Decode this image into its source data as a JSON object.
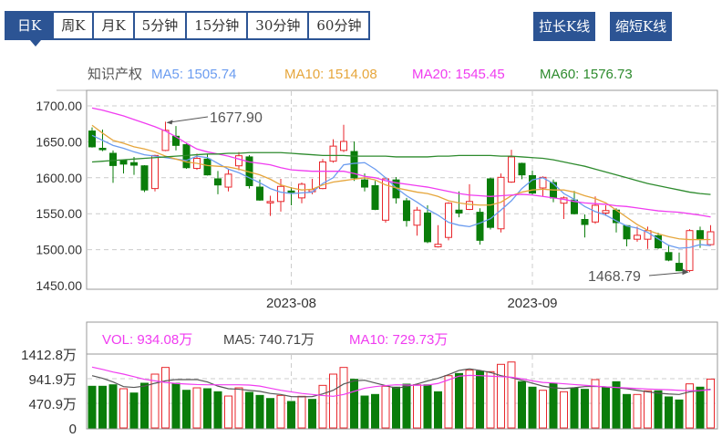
{
  "tabs": [
    {
      "label": "日K",
      "active": true
    },
    {
      "label": "周K"
    },
    {
      "label": "月K"
    },
    {
      "label": "5分钟"
    },
    {
      "label": "15分钟"
    },
    {
      "label": "30分钟"
    },
    {
      "label": "60分钟"
    }
  ],
  "buttons": {
    "zoom_in": "拉长K线",
    "zoom_out": "缩短K线"
  },
  "legend": {
    "name": "知识产权",
    "ma5": "MA5: 1505.74",
    "ma10": "MA10: 1514.08",
    "ma20": "MA20: 1545.45",
    "ma60": "MA60: 1576.73"
  },
  "volume_legend": {
    "vol": "VOL: 934.08万",
    "ma5": "MA5: 740.71万",
    "ma10": "MA10: 729.73万"
  },
  "colors": {
    "accent": "#2c5494",
    "up": "#e8262b",
    "down": "#0a7d0a",
    "ma5": "#6b9cf0",
    "ma10": "#e6a63c",
    "ma20": "#f03cf0",
    "ma60": "#2e8b2e",
    "vol_ma5": "#555555",
    "vol_ma10": "#f03cf0"
  },
  "chart_data": [
    {
      "type": "candlestick",
      "ylim": [
        1450,
        1700
      ],
      "yticks": [
        "1700.00",
        "1650.00",
        "1600.00",
        "1550.00",
        "1500.00",
        "1450.00"
      ],
      "xticks": [
        {
          "label": "2023-08",
          "index": 19
        },
        {
          "label": "2023-09",
          "index": 42
        }
      ],
      "grid": true,
      "annotations": [
        {
          "label": "1677.90",
          "index": 7,
          "value": 1677.9
        },
        {
          "label": "1468.79",
          "index": 57,
          "value": 1468.79
        }
      ],
      "ohlc": [
        [
          1665,
          1670,
          1642,
          1643
        ],
        [
          1641,
          1667,
          1637,
          1639
        ],
        [
          1634,
          1638,
          1593,
          1617
        ],
        [
          1624,
          1625,
          1606,
          1619
        ],
        [
          1621,
          1629,
          1604,
          1617.5
        ],
        [
          1616.6,
          1617.5,
          1580,
          1583
        ],
        [
          1585,
          1632,
          1581,
          1631
        ],
        [
          1638,
          1677.9,
          1637,
          1666
        ],
        [
          1657.7,
          1672,
          1638,
          1645
        ],
        [
          1646,
          1648.6,
          1612.5,
          1614
        ],
        [
          1613,
          1633.6,
          1611,
          1627
        ],
        [
          1626,
          1633,
          1603,
          1604
        ],
        [
          1598.5,
          1609.5,
          1577,
          1590
        ],
        [
          1587,
          1612,
          1581,
          1605
        ],
        [
          1616.6,
          1635.7,
          1610.3,
          1630.6
        ],
        [
          1629,
          1631.5,
          1585,
          1589
        ],
        [
          1587,
          1597.6,
          1568,
          1569
        ],
        [
          1565,
          1575,
          1547,
          1567
        ],
        [
          1567,
          1598.5,
          1553,
          1588
        ],
        [
          1581.6,
          1587,
          1561.7,
          1580
        ],
        [
          1572,
          1593.4,
          1564.6,
          1591
        ],
        [
          1580.6,
          1598.5,
          1577,
          1583.5
        ],
        [
          1585,
          1626,
          1584,
          1622
        ],
        [
          1623,
          1653.5,
          1621,
          1644
        ],
        [
          1638,
          1673.7,
          1635.7,
          1650.5
        ],
        [
          1636.5,
          1650.5,
          1595.6,
          1599.8
        ],
        [
          1597,
          1606,
          1581,
          1587
        ],
        [
          1589,
          1595.6,
          1555,
          1556
        ],
        [
          1541,
          1600,
          1537.6,
          1598.5
        ],
        [
          1597,
          1601,
          1564,
          1572
        ],
        [
          1568,
          1572,
          1532,
          1540.5
        ],
        [
          1534,
          1559.5,
          1519.5,
          1555
        ],
        [
          1551,
          1561.7,
          1509,
          1511
        ],
        [
          1504,
          1534,
          1503,
          1507.5
        ],
        [
          1517,
          1566,
          1513,
          1564.6
        ],
        [
          1555,
          1581,
          1545,
          1551
        ],
        [
          1556,
          1591,
          1555,
          1567
        ],
        [
          1552,
          1557.5,
          1507,
          1513
        ],
        [
          1598.5,
          1600,
          1528,
          1531
        ],
        [
          1529,
          1606,
          1524,
          1600.6
        ],
        [
          1594,
          1639,
          1593,
          1629
        ],
        [
          1620,
          1621,
          1598,
          1604
        ],
        [
          1603,
          1610,
          1576.5,
          1578.7
        ],
        [
          1585.8,
          1602,
          1574,
          1600.6
        ],
        [
          1593.4,
          1597.6,
          1566,
          1572
        ],
        [
          1564.6,
          1574,
          1542.6,
          1572
        ],
        [
          1569,
          1581.6,
          1549,
          1550
        ],
        [
          1542,
          1549,
          1517,
          1535
        ],
        [
          1538.5,
          1574,
          1536,
          1561.7
        ],
        [
          1551,
          1561.7,
          1547,
          1554.4
        ],
        [
          1555,
          1557.5,
          1524,
          1537.6
        ],
        [
          1533.4,
          1534,
          1504.6,
          1515
        ],
        [
          1514.5,
          1532,
          1511,
          1520
        ],
        [
          1514.5,
          1532,
          1501,
          1526.5
        ],
        [
          1519.4,
          1523.6,
          1501,
          1502.5
        ],
        [
          1496,
          1506.8,
          1484,
          1485.5
        ],
        [
          1481,
          1496,
          1470,
          1470.7
        ],
        [
          1471,
          1528.6,
          1468.79,
          1526.5
        ],
        [
          1526.5,
          1532,
          1502.5,
          1514
        ],
        [
          1507,
          1534,
          1505.5,
          1524.9
        ]
      ],
      "series": [
        {
          "name": "MA5",
          "values": [
            1659,
            1652,
            1645,
            1641,
            1636,
            1632,
            1630,
            1628,
            1626,
            1624,
            1630,
            1628,
            1620,
            1612,
            1607,
            1600,
            1593,
            1585,
            1580,
            1578,
            1579,
            1580,
            1592,
            1600,
            1618,
            1620,
            1621,
            1612,
            1600,
            1586,
            1575,
            1566,
            1556,
            1548,
            1538,
            1534,
            1532,
            1537,
            1543,
            1555,
            1568,
            1585,
            1597,
            1600,
            1592,
            1578,
            1570,
            1560,
            1553,
            1548,
            1540,
            1533,
            1530,
            1524,
            1515,
            1506,
            1502,
            1503,
            1507,
            1505.74
          ]
        },
        {
          "name": "MA10",
          "values": [
            1673,
            1662,
            1652,
            1648,
            1643,
            1640,
            1636,
            1630,
            1626,
            1622,
            1620,
            1617,
            1616,
            1615,
            1612,
            1608,
            1604,
            1598,
            1590,
            1586,
            1583,
            1584,
            1590,
            1594,
            1596,
            1598,
            1600,
            1597,
            1590,
            1586,
            1583,
            1580,
            1578,
            1574,
            1568,
            1565,
            1563,
            1562,
            1562,
            1566,
            1575,
            1580,
            1583,
            1584,
            1583,
            1583,
            1580,
            1575,
            1571,
            1565,
            1555,
            1545,
            1535,
            1527,
            1522,
            1518,
            1515,
            1514,
            1514,
            1514.08
          ]
        },
        {
          "name": "MA20",
          "values": [
            1697,
            1694,
            1690,
            1686,
            1681,
            1676,
            1671,
            1665,
            1657,
            1648,
            1640,
            1636,
            1633,
            1630,
            1626,
            1622,
            1620,
            1618,
            1614,
            1611,
            1610,
            1609,
            1609,
            1609,
            1609,
            1606,
            1602,
            1600,
            1596,
            1593,
            1591,
            1589,
            1587,
            1584,
            1581,
            1578,
            1576,
            1575,
            1574,
            1575,
            1576,
            1577,
            1576,
            1574,
            1572,
            1570,
            1567,
            1565,
            1564,
            1563,
            1561,
            1560,
            1558,
            1556,
            1554,
            1553,
            1552,
            1550,
            1548,
            1545.45
          ]
        },
        {
          "name": "MA60",
          "values": [
            1622,
            1623,
            1624,
            1625,
            1626,
            1627,
            1628,
            1629,
            1630,
            1631,
            1632,
            1633,
            1633,
            1634,
            1634,
            1635,
            1635,
            1635,
            1635,
            1634,
            1633,
            1632,
            1631,
            1631,
            1631,
            1630,
            1630,
            1630,
            1630,
            1629,
            1629,
            1629,
            1629,
            1630,
            1630,
            1631,
            1631,
            1631,
            1631,
            1630,
            1630,
            1629,
            1628,
            1627,
            1625,
            1622,
            1619,
            1616,
            1612,
            1608,
            1604,
            1600,
            1596,
            1592,
            1589,
            1586,
            1583,
            1580,
            1578,
            1576.73
          ]
        }
      ]
    },
    {
      "type": "bar",
      "unit": "万",
      "ylim": [
        0,
        1412.8
      ],
      "yticks": [
        "1412.8万",
        "941.9万",
        "470.9万",
        "0"
      ],
      "values": [
        797,
        797,
        825,
        750,
        668,
        855,
        1029,
        1157,
        855,
        720,
        767,
        750,
        692,
        610,
        767,
        680,
        622,
        563,
        622,
        506,
        605,
        546,
        814,
        1029,
        1157,
        930,
        610,
        640,
        797,
        780,
        837,
        825,
        825,
        692,
        999,
        1041,
        1104,
        1087,
        1076,
        1216,
        1261,
        884,
        780,
        720,
        855,
        692,
        767,
        738,
        924,
        780,
        884,
        640,
        640,
        710,
        710,
        593,
        535,
        843,
        780,
        934.08
      ],
      "up": [
        0,
        0,
        0,
        1,
        0,
        0,
        1,
        1,
        0,
        0,
        1,
        0,
        0,
        1,
        1,
        0,
        0,
        0,
        1,
        0,
        1,
        0,
        1,
        1,
        1,
        0,
        0,
        0,
        1,
        0,
        0,
        1,
        0,
        0,
        1,
        0,
        1,
        0,
        1,
        1,
        1,
        0,
        0,
        1,
        0,
        1,
        0,
        0,
        1,
        0,
        0,
        0,
        1,
        1,
        0,
        0,
        0,
        1,
        0,
        1
      ],
      "series": [
        {
          "name": "MA5",
          "values": [
            1000,
            950,
            880,
            790,
            775,
            800,
            855,
            900,
            925,
            925,
            925,
            880,
            800,
            750,
            740,
            720,
            700,
            660,
            640,
            600,
            595,
            600,
            650,
            720,
            840,
            900,
            912,
            860,
            810,
            760,
            790,
            840,
            900,
            950,
            1020,
            1100,
            1130,
            1100,
            1060,
            1000,
            960,
            910,
            855,
            800,
            767,
            755,
            770,
            790,
            795,
            785,
            770,
            750,
            720,
            690,
            665,
            650,
            640,
            690,
            715,
            740.71
          ]
        },
        {
          "name": "MA10",
          "values": [
            1163,
            1120,
            1070,
            1029,
            980,
            930,
            900,
            870,
            850,
            840,
            830,
            825,
            825,
            825,
            825,
            820,
            800,
            760,
            720,
            690,
            660,
            640,
            620,
            605,
            640,
            700,
            760,
            790,
            810,
            825,
            820,
            815,
            820,
            850,
            920,
            990,
            1005,
            1000,
            990,
            980,
            970,
            940,
            900,
            870,
            860,
            845,
            830,
            815,
            800,
            785,
            775,
            765,
            755,
            745,
            738,
            730,
            720,
            712,
            715,
            729.73
          ]
        }
      ]
    }
  ]
}
